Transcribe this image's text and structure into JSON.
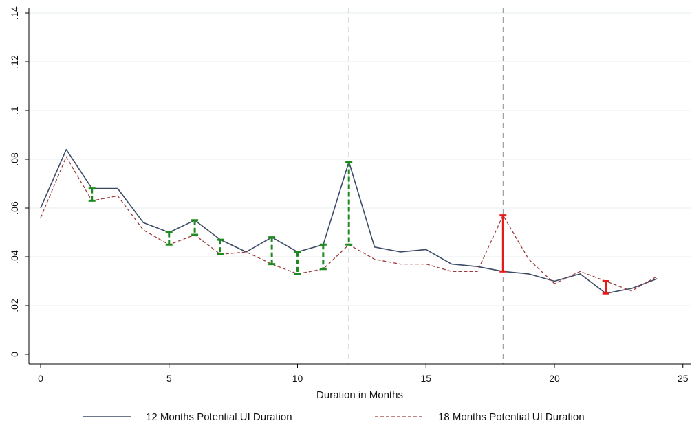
{
  "chart_data": {
    "type": "line",
    "title": "",
    "xlabel": "Duration in Months",
    "ylabel": "",
    "xlim": [
      0,
      25
    ],
    "ylim": [
      0,
      0.14
    ],
    "x_ticks": [
      0,
      5,
      10,
      15,
      20,
      25
    ],
    "x_tick_labels": [
      "0",
      "5",
      "10",
      "15",
      "20",
      "25"
    ],
    "y_ticks": [
      0,
      0.02,
      0.04,
      0.06,
      0.08,
      0.1,
      0.12,
      0.14
    ],
    "y_tick_labels": [
      "0",
      ".02",
      ".04",
      ".06",
      ".08",
      ".1",
      ".12",
      ".14"
    ],
    "grid": "horizontal",
    "legend_position": "bottom",
    "x": [
      0,
      1,
      2,
      3,
      4,
      5,
      6,
      7,
      8,
      9,
      10,
      11,
      12,
      13,
      14,
      15,
      16,
      17,
      18,
      19,
      20,
      21,
      22,
      23,
      24
    ],
    "series": [
      {
        "name": "12 Months Potential UI Duration",
        "color": "#3b4a66",
        "style": "solid",
        "values": [
          0.06,
          0.084,
          0.068,
          0.068,
          0.054,
          0.05,
          0.055,
          0.047,
          0.042,
          0.048,
          0.042,
          0.045,
          0.079,
          0.044,
          0.042,
          0.043,
          0.037,
          0.036,
          0.034,
          0.033,
          0.03,
          0.033,
          0.025,
          0.027,
          0.031
        ]
      },
      {
        "name": "18 Months Potential UI Duration",
        "color": "#9a3a3a",
        "style": "dashed",
        "values": [
          0.056,
          0.081,
          0.063,
          0.065,
          0.051,
          0.045,
          0.049,
          0.041,
          0.042,
          0.037,
          0.033,
          0.035,
          0.045,
          0.039,
          0.037,
          0.037,
          0.034,
          0.034,
          0.057,
          0.039,
          0.029,
          0.034,
          0.03,
          0.026,
          0.032
        ]
      }
    ],
    "reference_lines_x": [
      12,
      18
    ],
    "difference_bars": [
      {
        "x": 2,
        "low": 0.063,
        "high": 0.068,
        "color": "#1f8a1f",
        "style": "dashed"
      },
      {
        "x": 5,
        "low": 0.045,
        "high": 0.05,
        "color": "#1f8a1f",
        "style": "dashed"
      },
      {
        "x": 6,
        "low": 0.049,
        "high": 0.055,
        "color": "#1f8a1f",
        "style": "dashed"
      },
      {
        "x": 7,
        "low": 0.041,
        "high": 0.047,
        "color": "#1f8a1f",
        "style": "dashed"
      },
      {
        "x": 9,
        "low": 0.037,
        "high": 0.048,
        "color": "#1f8a1f",
        "style": "dashed"
      },
      {
        "x": 10,
        "low": 0.033,
        "high": 0.042,
        "color": "#1f8a1f",
        "style": "dashed"
      },
      {
        "x": 11,
        "low": 0.035,
        "high": 0.045,
        "color": "#1f8a1f",
        "style": "dashed"
      },
      {
        "x": 12,
        "low": 0.045,
        "high": 0.079,
        "color": "#1f8a1f",
        "style": "dashed"
      },
      {
        "x": 18,
        "low": 0.034,
        "high": 0.057,
        "color": "#e31b1b",
        "style": "solid"
      },
      {
        "x": 22,
        "low": 0.025,
        "high": 0.03,
        "color": "#e31b1b",
        "style": "solid"
      }
    ]
  }
}
